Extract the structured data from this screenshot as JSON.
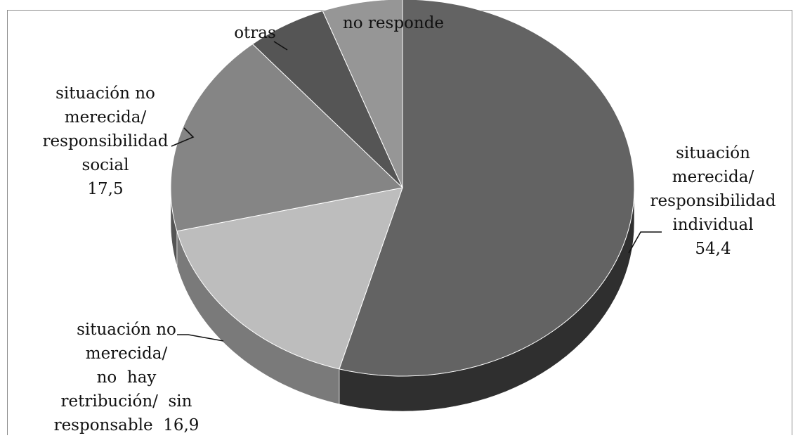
{
  "chart_data": {
    "type": "pie",
    "title": "",
    "slices": [
      {
        "lines": [
          "situación",
          "merecida/",
          "responsibilidad",
          "individual",
          "54,4"
        ],
        "value": 54.4,
        "color": "#636363",
        "side": "#2f2f2f"
      },
      {
        "lines": [
          "situación no",
          "merecida/",
          "no  hay",
          "retribución/  sin",
          "responsable  16,9"
        ],
        "value": 16.9,
        "color": "#bdbdbd",
        "side": "#7a7a7a"
      },
      {
        "lines": [
          "situación no",
          "merecida/",
          "responsibilidad",
          "social",
          "17,5"
        ],
        "value": 17.5,
        "color": "#858585",
        "side": "#555555"
      },
      {
        "lines": [
          "otras"
        ],
        "value": 5.6,
        "color": "#555555",
        "side": "#333333"
      },
      {
        "lines": [
          "no responde"
        ],
        "value": 5.6,
        "color": "#969696",
        "side": "#5e5e5e"
      }
    ]
  }
}
